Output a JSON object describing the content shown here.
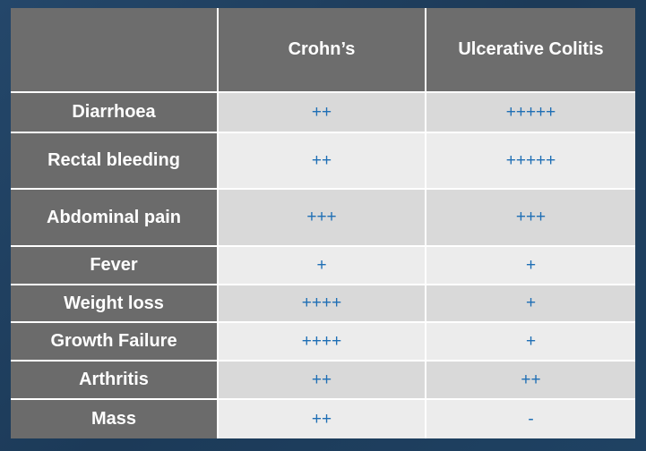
{
  "table": {
    "columns": [
      "Crohn’s",
      "Ulcerative Colitis"
    ],
    "rows": [
      [
        "Diarrhoea",
        "++",
        "+++++"
      ],
      [
        "Rectal bleeding",
        "++",
        "+++++"
      ],
      [
        "Abdominal pain",
        "+++",
        "+++"
      ],
      [
        "Fever",
        "+",
        "+"
      ],
      [
        "Weight loss",
        "++++",
        "+"
      ],
      [
        "Growth Failure",
        "++++",
        "+"
      ],
      [
        "Arthritis",
        "++",
        "++"
      ],
      [
        "Mass",
        "++",
        "-"
      ]
    ]
  }
}
